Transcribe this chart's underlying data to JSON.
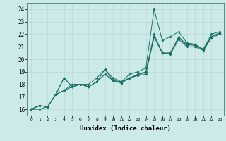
{
  "xlabel": "Humidex (Indice chaleur)",
  "ylabel": "",
  "xlim": [
    -0.5,
    23.5
  ],
  "ylim": [
    15.5,
    24.5
  ],
  "xticks": [
    0,
    1,
    2,
    3,
    4,
    5,
    6,
    7,
    8,
    9,
    10,
    11,
    12,
    13,
    14,
    15,
    16,
    17,
    18,
    19,
    20,
    21,
    22,
    23
  ],
  "yticks": [
    16,
    17,
    18,
    19,
    20,
    21,
    22,
    23,
    24
  ],
  "background_color": "#cceae8",
  "grid_color": "#b8d8d6",
  "line_color": "#1a6e65",
  "series": [
    [
      16.0,
      16.3,
      16.2,
      17.2,
      18.5,
      17.8,
      18.0,
      18.0,
      18.5,
      19.2,
      18.3,
      18.2,
      18.5,
      18.8,
      19.0,
      22.0,
      20.5,
      20.5,
      21.8,
      21.1,
      21.2,
      20.7,
      21.8,
      22.1
    ],
    [
      16.0,
      16.3,
      16.2,
      17.2,
      18.5,
      17.8,
      18.0,
      17.8,
      18.2,
      18.8,
      18.3,
      18.1,
      18.5,
      18.7,
      19.0,
      21.8,
      20.5,
      20.4,
      21.6,
      21.0,
      21.0,
      20.7,
      21.7,
      22.0
    ],
    [
      16.0,
      16.3,
      16.2,
      17.2,
      17.5,
      17.8,
      18.0,
      17.8,
      18.2,
      19.2,
      18.5,
      18.2,
      18.8,
      19.0,
      19.3,
      24.0,
      21.5,
      21.8,
      22.2,
      21.3,
      21.2,
      20.8,
      22.0,
      22.2
    ],
    [
      16.0,
      16.0,
      16.2,
      17.2,
      17.5,
      18.0,
      18.0,
      17.8,
      18.2,
      18.8,
      18.3,
      18.1,
      18.5,
      18.7,
      18.8,
      21.8,
      20.5,
      20.5,
      21.7,
      21.2,
      21.1,
      20.8,
      21.8,
      22.1
    ]
  ]
}
